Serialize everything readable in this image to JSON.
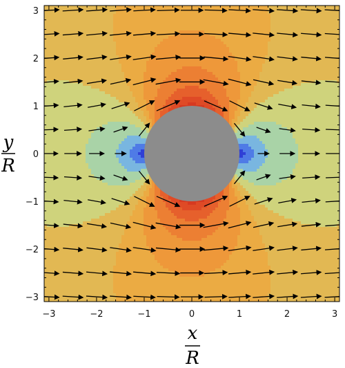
{
  "chart_data": {
    "type": "heatmap",
    "description_kind": "vector field over contour plot",
    "xlabel_num": "x",
    "xlabel_den": "R",
    "ylabel_num": "y",
    "ylabel_den": "R",
    "xlim": [
      -3.1,
      3.1
    ],
    "ylim": [
      -3.1,
      3.1
    ],
    "x_ticks": [
      {
        "value": -3,
        "label": "−3"
      },
      {
        "value": -2,
        "label": "−2"
      },
      {
        "value": -1,
        "label": "−1"
      },
      {
        "value": 0,
        "label": "0"
      },
      {
        "value": 1,
        "label": "1"
      },
      {
        "value": 2,
        "label": "2"
      },
      {
        "value": 3,
        "label": "3"
      }
    ],
    "y_ticks": [
      {
        "value": -3,
        "label": "−3"
      },
      {
        "value": -2,
        "label": "−2"
      },
      {
        "value": -1,
        "label": "−1"
      },
      {
        "value": 0,
        "label": "0"
      },
      {
        "value": 1,
        "label": "1"
      },
      {
        "value": 2,
        "label": "2"
      },
      {
        "value": 3,
        "label": "3"
      }
    ],
    "obstacle": {
      "shape": "circle",
      "center": [
        0,
        0
      ],
      "radius": 1,
      "color": "#8c8c8c"
    },
    "contour_levels": [
      {
        "value": 0.0,
        "color": "#2f3fd6"
      },
      {
        "value": 0.2,
        "color": "#4f7be6"
      },
      {
        "value": 0.4,
        "color": "#79b6e0"
      },
      {
        "value": 0.6,
        "color": "#a9d3a7"
      },
      {
        "value": 0.8,
        "color": "#cfd37c"
      },
      {
        "value": 0.95,
        "color": "#e2b853"
      },
      {
        "value": 1.05,
        "color": "#ebab43"
      },
      {
        "value": 1.15,
        "color": "#ee983a"
      },
      {
        "value": 1.3,
        "color": "#ec7f33"
      },
      {
        "value": 1.5,
        "color": "#e6602c"
      },
      {
        "value": 1.7,
        "color": "#df4a26"
      },
      {
        "value": 1.9,
        "color": "#d63a21"
      }
    ],
    "arrow_grid_step": 0.5,
    "arrow_color": "#000000",
    "plot_frame_color": "#000000"
  }
}
